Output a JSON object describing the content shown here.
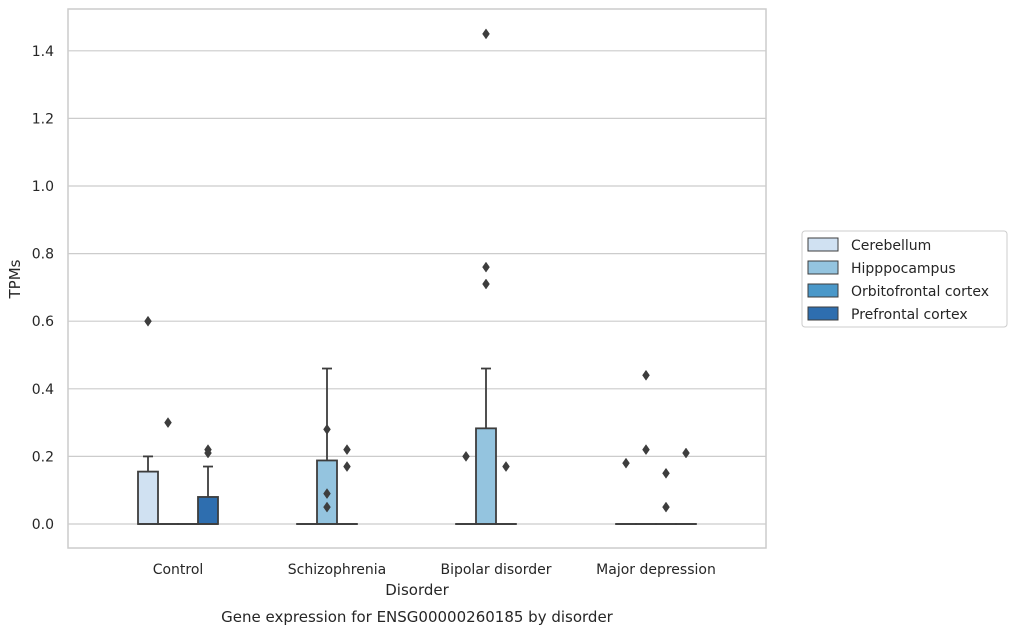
{
  "chart_data": {
    "type": "box",
    "title": "Gene expression for ENSG00000260185 by disorder",
    "xlabel": "Disorder",
    "ylabel": "TPMs",
    "ylim": [
      -0.07,
      1.52
    ],
    "yticks": [
      "0.0",
      "0.2",
      "0.4",
      "0.6",
      "0.8",
      "1.0",
      "1.2",
      "1.4"
    ],
    "grid": true,
    "legend_position": "right",
    "categories": [
      "Control",
      "Schizophrenia",
      "Bipolar disorder",
      "Major depression"
    ],
    "series": [
      {
        "name": "Cerebellum",
        "color": "#d0e1f2",
        "boxes": [
          {
            "q1": 0.0,
            "median": 0.0,
            "q3": 0.155,
            "whisker_low": 0.0,
            "whisker_high": 0.2,
            "outliers": [
              0.6
            ]
          },
          {
            "q1": 0.0,
            "median": 0.0,
            "q3": 0.0,
            "whisker_low": 0.0,
            "whisker_high": 0.0,
            "outliers": []
          },
          {
            "q1": 0.0,
            "median": 0.0,
            "q3": 0.0,
            "whisker_low": 0.0,
            "whisker_high": 0.0,
            "outliers": [
              0.2
            ]
          },
          {
            "q1": 0.0,
            "median": 0.0,
            "q3": 0.0,
            "whisker_low": 0.0,
            "whisker_high": 0.0,
            "outliers": [
              0.18
            ]
          }
        ]
      },
      {
        "name": "Hipppocampus",
        "color": "#94c4df",
        "boxes": [
          {
            "q1": 0.0,
            "median": 0.0,
            "q3": 0.0,
            "whisker_low": 0.0,
            "whisker_high": 0.0,
            "outliers": [
              0.3
            ]
          },
          {
            "q1": 0.0,
            "median": 0.0,
            "q3": 0.188,
            "whisker_low": 0.0,
            "whisker_high": 0.46,
            "outliers": [
              0.28,
              0.09,
              0.05
            ]
          },
          {
            "q1": 0.0,
            "median": 0.0,
            "q3": 0.283,
            "whisker_low": 0.0,
            "whisker_high": 0.46,
            "outliers": [
              1.45,
              0.76,
              0.71
            ]
          },
          {
            "q1": 0.0,
            "median": 0.0,
            "q3": 0.0,
            "whisker_low": 0.0,
            "whisker_high": 0.0,
            "outliers": [
              0.44,
              0.22
            ]
          }
        ]
      },
      {
        "name": "Orbitofrontal cortex",
        "color": "#4a98c9",
        "boxes": [
          {
            "q1": 0.0,
            "median": 0.0,
            "q3": 0.0,
            "whisker_low": 0.0,
            "whisker_high": 0.0,
            "outliers": []
          },
          {
            "q1": 0.0,
            "median": 0.0,
            "q3": 0.0,
            "whisker_low": 0.0,
            "whisker_high": 0.0,
            "outliers": [
              0.22,
              0.17
            ]
          },
          {
            "q1": 0.0,
            "median": 0.0,
            "q3": 0.0,
            "whisker_low": 0.0,
            "whisker_high": 0.0,
            "outliers": [
              0.17
            ]
          },
          {
            "q1": 0.0,
            "median": 0.0,
            "q3": 0.0,
            "whisker_low": 0.0,
            "whisker_high": 0.0,
            "outliers": [
              0.15,
              0.05
            ]
          }
        ]
      },
      {
        "name": "Prefrontal cortex",
        "color": "#2e6eaf",
        "boxes": [
          {
            "q1": 0.0,
            "median": 0.0,
            "q3": 0.08,
            "whisker_low": 0.0,
            "whisker_high": 0.17,
            "outliers": [
              0.22,
              0.21
            ]
          },
          null,
          null,
          {
            "q1": 0.0,
            "median": 0.0,
            "q3": 0.0,
            "whisker_low": 0.0,
            "whisker_high": 0.0,
            "outliers": [
              0.21
            ]
          }
        ]
      }
    ]
  }
}
